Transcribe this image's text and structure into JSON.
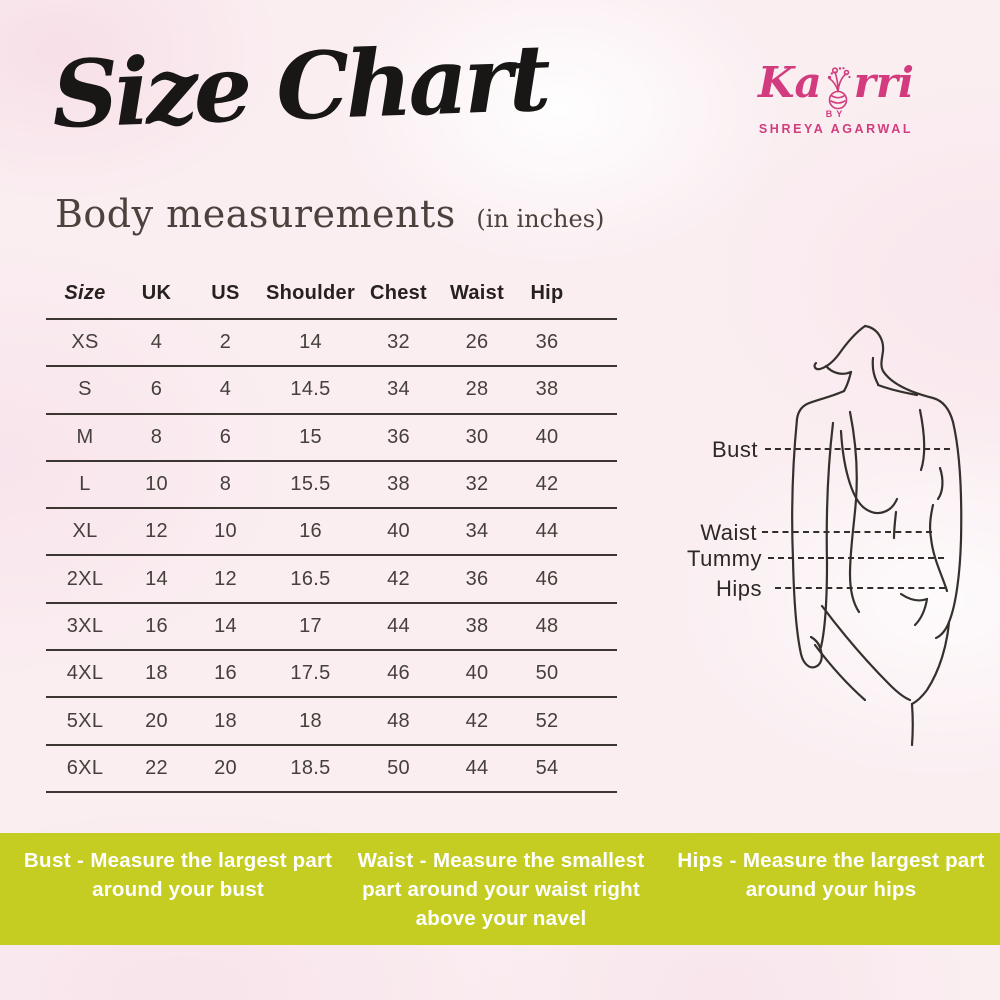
{
  "title": "Size Chart",
  "brand": {
    "name_left": "Ka",
    "name_right": "rri",
    "by": "BY",
    "owner": "SHREYA AGARWAL"
  },
  "section": {
    "heading": "Body measurements",
    "unit": "(in inches)"
  },
  "chart_data": {
    "type": "table",
    "title": "Body measurements (in inches)",
    "columns": [
      "Size",
      "UK",
      "US",
      "Shoulder",
      "Chest",
      "Waist",
      "Hip"
    ],
    "rows": [
      [
        "XS",
        "4",
        "2",
        "14",
        "32",
        "26",
        "36"
      ],
      [
        "S",
        "6",
        "4",
        "14.5",
        "34",
        "28",
        "38"
      ],
      [
        "M",
        "8",
        "6",
        "15",
        "36",
        "30",
        "40"
      ],
      [
        "L",
        "10",
        "8",
        "15.5",
        "38",
        "32",
        "42"
      ],
      [
        "XL",
        "12",
        "10",
        "16",
        "40",
        "34",
        "44"
      ],
      [
        "2XL",
        "14",
        "12",
        "16.5",
        "42",
        "36",
        "46"
      ],
      [
        "3XL",
        "16",
        "14",
        "17",
        "44",
        "38",
        "48"
      ],
      [
        "4XL",
        "18",
        "16",
        "17.5",
        "46",
        "40",
        "50"
      ],
      [
        "5XL",
        "20",
        "18",
        "18",
        "48",
        "42",
        "52"
      ],
      [
        "6XL",
        "22",
        "20",
        "18.5",
        "50",
        "44",
        "54"
      ]
    ]
  },
  "figure": {
    "labels": [
      "Bust",
      "Waist",
      "Tummy",
      "Hips"
    ]
  },
  "footer": {
    "items": [
      {
        "label": "Bust -",
        "text": "Measure the largest part around your bust"
      },
      {
        "label": "Waist -",
        "text": "Measure the smallest part around your waist right above your navel"
      },
      {
        "label": "Hips -",
        "text": "Measure the largest part around your hips"
      }
    ]
  },
  "colors": {
    "accent_pink": "#d23c7e",
    "band_green": "#c5cd22",
    "ink": "#34302c"
  }
}
